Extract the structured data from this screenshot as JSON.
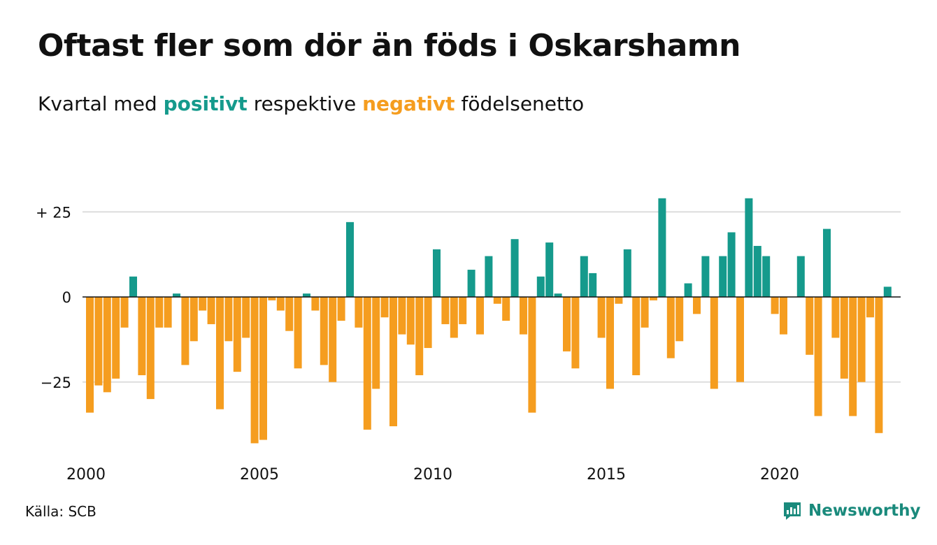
{
  "header": {
    "title": "Oftast fler som dör än föds i Oskarshamn",
    "subtitle": {
      "pre": "Kvartal med",
      "positive_word": "positivt",
      "mid": "respektive",
      "negative_word": "negativt",
      "post": "födelsenetto"
    }
  },
  "footer": {
    "source": "Källa: SCB",
    "brand": "Newsworthy"
  },
  "colors": {
    "positive": "#159a8c",
    "negative": "#f59d1f",
    "grid": "#dddddd",
    "zero_line": "#111111"
  },
  "chart_data": {
    "type": "bar",
    "title": "Oftast fler som dör än föds i Oskarshamn",
    "subtitle": "Kvartal med positivt respektive negativt födelsenetto",
    "xlabel": "",
    "ylabel": "",
    "x_ticks": [
      "2000",
      "2005",
      "2010",
      "2015",
      "2020"
    ],
    "y_ticks": [
      {
        "value": 25,
        "label": "+ 25"
      },
      {
        "value": 0,
        "label": "0"
      },
      {
        "value": -25,
        "label": "−25"
      }
    ],
    "ylim": [
      -45,
      37
    ],
    "grid": true,
    "x_start_year": 2000,
    "values": [
      -34,
      -26,
      -28,
      -24,
      -9,
      6,
      -23,
      -30,
      -9,
      -9,
      1,
      -20,
      -13,
      -4,
      -8,
      -33,
      -13,
      -22,
      -12,
      -43,
      -42,
      -1,
      -4,
      -10,
      -21,
      1,
      -4,
      -20,
      -25,
      -7,
      22,
      -9,
      -39,
      -27,
      -6,
      -38,
      -11,
      -14,
      -23,
      -15,
      14,
      -8,
      -12,
      -8,
      8,
      -11,
      12,
      -2,
      -7,
      17,
      -11,
      -34,
      6,
      16,
      1,
      -16,
      -21,
      12,
      7,
      -12,
      -27,
      -2,
      14,
      -23,
      -9,
      -1,
      29,
      -18,
      -13,
      4,
      -5,
      12,
      -27,
      12,
      19,
      -25,
      29,
      15,
      12,
      -5,
      -11,
      0,
      12,
      -17,
      -35,
      20,
      -12,
      -24,
      -35,
      -25,
      -6,
      -40,
      3
    ]
  }
}
